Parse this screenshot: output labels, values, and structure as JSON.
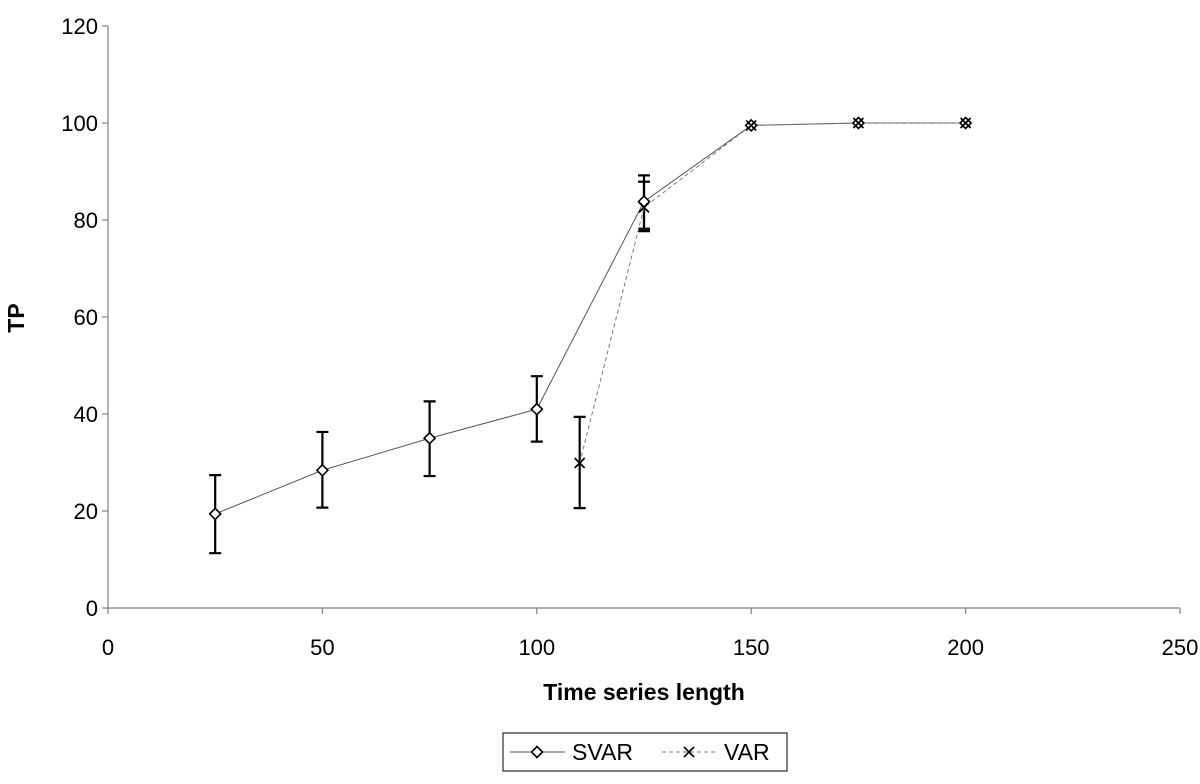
{
  "chart_data": {
    "type": "line",
    "title": "",
    "xlabel": "Time series length",
    "ylabel": "TP",
    "xlim": [
      0,
      250
    ],
    "ylim": [
      0,
      120
    ],
    "x_ticks": [
      0,
      50,
      100,
      150,
      200,
      250
    ],
    "y_ticks": [
      0,
      20,
      40,
      60,
      80,
      100,
      120
    ],
    "grid": false,
    "legend_placement": "bottom-center",
    "series": [
      {
        "name": "SVAR",
        "marker": "diamond",
        "line_style": "solid",
        "color": "#000000",
        "points": [
          {
            "x": 25,
            "y": 19.4,
            "err_low": 11.3,
            "err_high": 27.4
          },
          {
            "x": 50,
            "y": 28.4,
            "err_low": 20.7,
            "err_high": 36.3
          },
          {
            "x": 75,
            "y": 35.0,
            "err_low": 27.2,
            "err_high": 42.6
          },
          {
            "x": 100,
            "y": 41.0,
            "err_low": 34.3,
            "err_high": 47.8
          },
          {
            "x": 125,
            "y": 83.8,
            "err_low": 78.2,
            "err_high": 89.2
          },
          {
            "x": 150,
            "y": 99.5
          },
          {
            "x": 175,
            "y": 100.0
          },
          {
            "x": 200,
            "y": 100.0
          }
        ]
      },
      {
        "name": "VAR",
        "marker": "x",
        "line_style": "dashed",
        "color": "#000000",
        "points": [
          {
            "x": 110,
            "y": 29.9,
            "err_low": 20.6,
            "err_high": 39.4
          },
          {
            "x": 125,
            "y": 82.6,
            "err_low": 77.7,
            "err_high": 87.9
          },
          {
            "x": 150,
            "y": 99.5
          },
          {
            "x": 175,
            "y": 100.0
          },
          {
            "x": 200,
            "y": 100.0
          }
        ]
      }
    ]
  }
}
